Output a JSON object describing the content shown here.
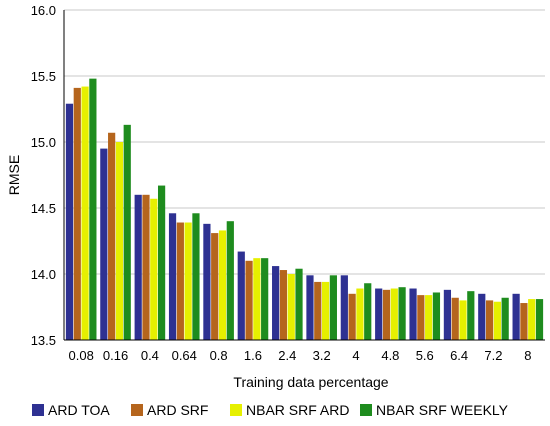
{
  "chart_data": {
    "type": "bar",
    "xlabel": "Training data percentage",
    "ylabel": "RMSE",
    "ylim": [
      13.5,
      16.0
    ],
    "yticks": [
      "13.5",
      "14.0",
      "14.5",
      "15.0",
      "15.5",
      "16.0"
    ],
    "grid": "horizontal",
    "legend_position": "bottom",
    "categories": [
      "0.08",
      "0.16",
      "0.4",
      "0.64",
      "0.8",
      "1.6",
      "2.4",
      "3.2",
      "4",
      "4.8",
      "5.6",
      "6.4",
      "7.2",
      "8"
    ],
    "series": [
      {
        "name": "ARD TOA",
        "color": "#2e3192",
        "values": [
          15.29,
          14.95,
          14.6,
          14.46,
          14.38,
          14.17,
          14.06,
          13.99,
          13.99,
          13.89,
          13.89,
          13.88,
          13.85,
          13.85
        ]
      },
      {
        "name": "ARD SRF",
        "color": "#b5651d",
        "values": [
          15.41,
          15.07,
          14.6,
          14.39,
          14.31,
          14.1,
          14.03,
          13.94,
          13.85,
          13.88,
          13.84,
          13.82,
          13.8,
          13.78
        ]
      },
      {
        "name": "NBAR SRF ARD",
        "color": "#e6f000",
        "values": [
          15.42,
          15.0,
          14.57,
          14.39,
          14.33,
          14.12,
          14.0,
          13.94,
          13.89,
          13.89,
          13.84,
          13.8,
          13.79,
          13.81
        ]
      },
      {
        "name": "NBAR SRF WEEKLY",
        "color": "#1e8c1e",
        "values": [
          15.48,
          15.13,
          14.67,
          14.46,
          14.4,
          14.12,
          14.04,
          13.99,
          13.93,
          13.9,
          13.86,
          13.87,
          13.82,
          13.81
        ]
      }
    ]
  }
}
